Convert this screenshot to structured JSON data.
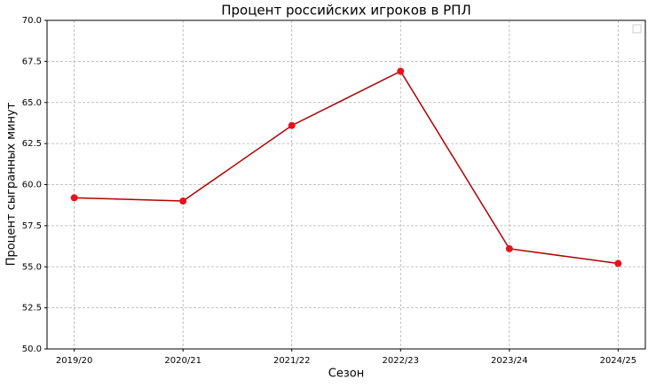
{
  "chart_data": {
    "type": "line",
    "title": "Процент российских игроков в РПЛ",
    "x_label": "Сезон",
    "y_label": "Процент сыгранных минут",
    "categories": [
      "2019/20",
      "2020/21",
      "2021/22",
      "2022/23",
      "2023/24",
      "2024/25"
    ],
    "values": [
      59.2,
      59.0,
      63.6,
      66.9,
      56.1,
      55.2
    ],
    "color": "#b00000",
    "marker_color": "#e8121b",
    "ylim": [
      50,
      70
    ],
    "yticks": [
      {
        "value": 50,
        "label": "50.0"
      },
      52.5,
      {
        "value": 55,
        "label": "55.0"
      },
      57.5,
      {
        "value": 60,
        "label": "60.0"
      },
      62.5,
      {
        "value": 65,
        "label": "65.0"
      },
      67.5,
      {
        "value": 70,
        "label": "70.0"
      }
    ],
    "grid": true
  }
}
